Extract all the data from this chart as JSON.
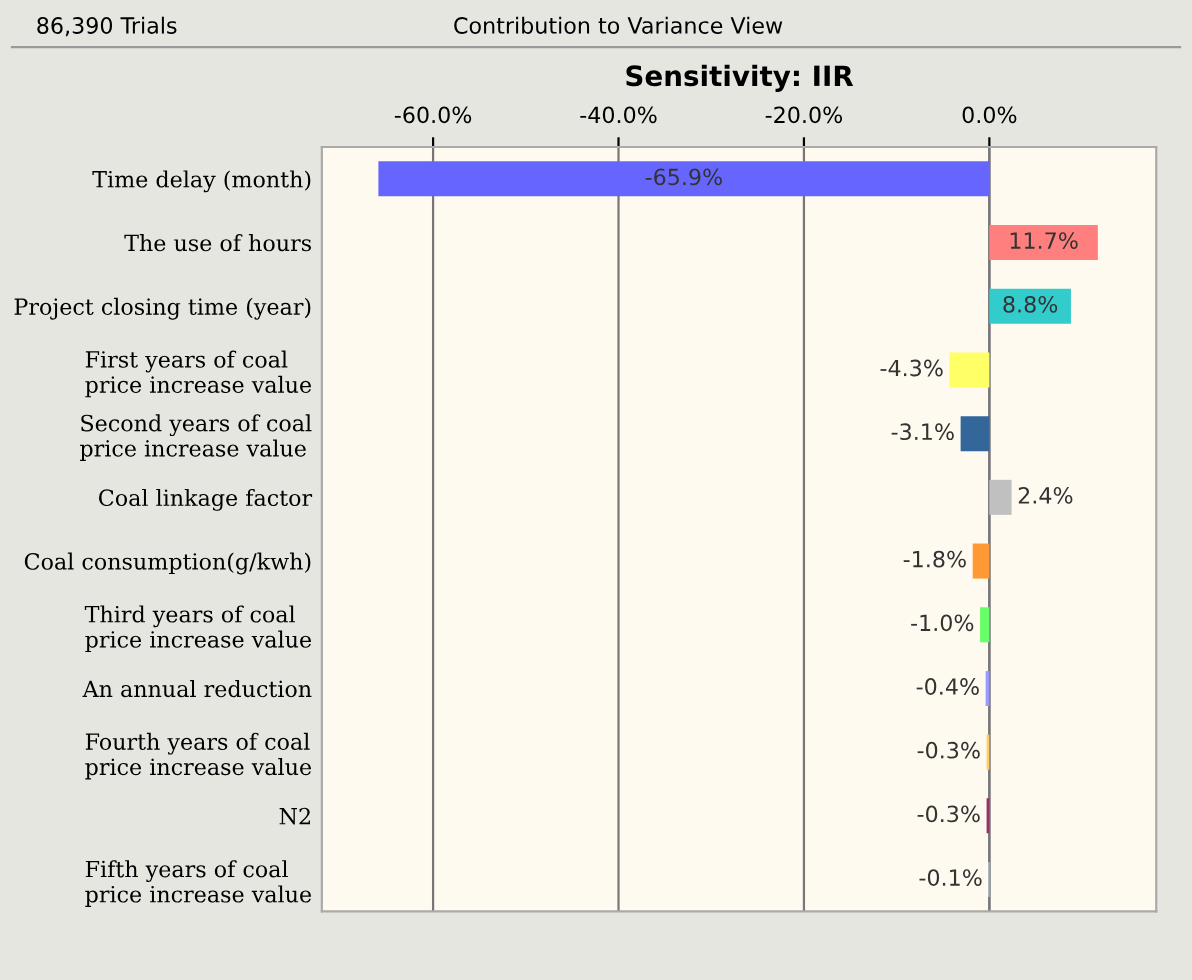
{
  "chart_data": {
    "type": "bar",
    "orientation": "horizontal",
    "title": "Sensitivity: IIR",
    "annotations": [
      "86,390 Trials",
      "Contribution to Variance View"
    ],
    "categories": [
      "Time delay (month)",
      "The use of hours",
      "Project closing time (year)",
      "First years of coal\nprice increase value",
      "Second years of coal\nprice increase value",
      "Coal linkage factor",
      "Coal consumption(g/kwh)",
      "Third years of coal\nprice increase value",
      "An annual reduction",
      "Fourth years of coal\nprice increase value",
      "N2",
      "Fifth years of coal\nprice increase value"
    ],
    "values": [
      -65.9,
      11.7,
      8.8,
      -4.3,
      -3.1,
      2.4,
      -1.8,
      -1.0,
      -0.4,
      -0.3,
      -0.3,
      -0.1
    ],
    "value_labels": [
      "-65.9%",
      "11.7%",
      "8.8%",
      "-4.3%",
      "-3.1%",
      "2.4%",
      "-1.8%",
      "-1.0%",
      "-0.4%",
      "-0.3%",
      "-0.3%",
      "-0.1%"
    ],
    "colors": [
      "#6666ff",
      "#ff7f7f",
      "#33cccc",
      "#ffff66",
      "#336699",
      "#c0c0c0",
      "#ff9933",
      "#66ff66",
      "#9999ff",
      "#ffcc66",
      "#993366",
      "#ccecff"
    ],
    "xlim": [
      -72,
      18
    ],
    "xticks": [
      {
        "value": -60,
        "label": "-60.0%"
      },
      {
        "value": -40,
        "label": "-40.0%"
      },
      {
        "value": -20,
        "label": "-20.0%"
      },
      {
        "value": 0,
        "label": "0.0%"
      }
    ],
    "grid": "x"
  }
}
